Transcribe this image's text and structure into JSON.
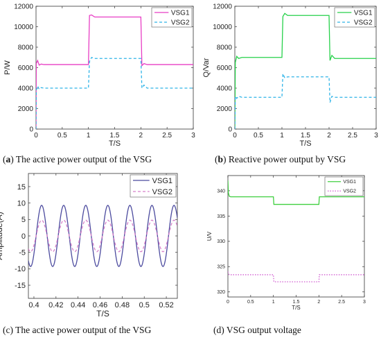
{
  "captions": [
    {
      "letter": "a",
      "text": "The active power output of the VSG"
    },
    {
      "letter": "b",
      "text": "Reactive power output by VSG"
    },
    {
      "plain": "(c) The active power output of the VSG"
    },
    {
      "plain": "(d) VSG output voltage"
    }
  ],
  "chart_data": [
    {
      "type": "line",
      "xlabel": "T/S",
      "ylabel": "P/W",
      "xlim": [
        0,
        3
      ],
      "ylim": [
        0,
        12000
      ],
      "xticks": [
        0,
        0.5,
        1,
        1.5,
        2,
        2.5,
        3
      ],
      "yticks": [
        0,
        2000,
        4000,
        6000,
        8000,
        10000,
        12000
      ],
      "legend_position": "top-right",
      "series": [
        {
          "name": "VSG1",
          "color": "#e83dc4",
          "dash": "solid",
          "x": [
            0,
            0.005,
            0.03,
            0.06,
            0.1,
            0.15,
            1.0,
            1.02,
            1.06,
            1.12,
            2.0,
            2.02,
            2.06,
            2.12,
            3.0
          ],
          "y": [
            0,
            6400,
            6700,
            6250,
            6350,
            6300,
            6300,
            11100,
            11150,
            10950,
            10950,
            6200,
            6400,
            6300,
            6300
          ]
        },
        {
          "name": "VSG2",
          "color": "#2fb4e8",
          "dash": "dashed",
          "x": [
            0,
            0.005,
            0.03,
            0.06,
            0.1,
            0.15,
            1.0,
            1.02,
            1.06,
            1.12,
            2.0,
            2.02,
            2.06,
            2.12,
            3.0
          ],
          "y": [
            0,
            3800,
            4200,
            3900,
            4050,
            4000,
            4000,
            6600,
            7000,
            6900,
            6900,
            4000,
            4300,
            4000,
            4000
          ]
        }
      ]
    },
    {
      "type": "line",
      "xlabel": "T/S",
      "ylabel": "Q/Var",
      "xlim": [
        0,
        3
      ],
      "ylim": [
        0,
        12000
      ],
      "xticks": [
        0,
        0.5,
        1,
        1.5,
        2,
        2.5,
        3
      ],
      "yticks": [
        0,
        2000,
        4000,
        6000,
        8000,
        10000,
        12000
      ],
      "legend_position": "top-right",
      "series": [
        {
          "name": "VSG1",
          "color": "#26d14a",
          "dash": "solid",
          "x": [
            0,
            0.01,
            0.04,
            0.08,
            0.15,
            1.0,
            1.02,
            1.06,
            1.12,
            2.0,
            2.02,
            2.06,
            2.12,
            3.0
          ],
          "y": [
            0,
            6500,
            7100,
            6900,
            7000,
            7000,
            11000,
            11300,
            11100,
            11100,
            6700,
            7200,
            6900,
            6900
          ]
        },
        {
          "name": "VSG2",
          "color": "#2fb4e8",
          "dash": "dashed",
          "x": [
            0,
            0.01,
            0.04,
            0.08,
            0.15,
            1.0,
            1.02,
            1.06,
            1.12,
            2.0,
            2.02,
            2.06,
            2.12,
            3.0
          ],
          "y": [
            0,
            3200,
            3000,
            3200,
            3100,
            3100,
            5400,
            5000,
            5100,
            5100,
            2600,
            3200,
            3100,
            3100
          ]
        }
      ]
    },
    {
      "type": "line",
      "xlabel": "T/S",
      "ylabel": "Amplitude(A)",
      "xlim": [
        0.395,
        0.53
      ],
      "ylim": [
        -19,
        19
      ],
      "xticks": [
        0.4,
        0.42,
        0.44,
        0.46,
        0.48,
        0.5,
        0.52
      ],
      "xtick_labels": [
        "0.4",
        "0.42",
        "0.44",
        "0.46",
        "0.48",
        "0.5",
        "0.52"
      ],
      "yticks": [
        -15,
        -10,
        -5,
        0,
        5,
        10,
        15
      ],
      "legend_position": "top-right",
      "series": [
        {
          "name": "VSG1",
          "color": "#4b4a9e",
          "dash": "solid",
          "amplitude": 9.3,
          "frequency_hz": 50,
          "phase_peak_at": 0.407
        },
        {
          "name": "VSG2",
          "color": "#d67fc9",
          "dash": "dashed",
          "amplitude": 4.8,
          "frequency_hz": 50,
          "phase_peak_at": 0.407
        }
      ]
    },
    {
      "type": "line",
      "xlabel": "T/S",
      "ylabel": "U/V",
      "xlim": [
        0,
        3
      ],
      "ylim": [
        319,
        343
      ],
      "xticks": [
        0,
        0.5,
        1,
        1.5,
        2,
        2.5,
        3
      ],
      "yticks": [
        320,
        325,
        330,
        335,
        340
      ],
      "legend_position": "top-right",
      "series": [
        {
          "name": "VSG1",
          "color": "#3fcf3f",
          "dash": "solid",
          "x": [
            0,
            0.01,
            0.03,
            0.06,
            1.0,
            1.01,
            2.0,
            2.01,
            3.0
          ],
          "y": [
            342,
            339.6,
            338.9,
            338.8,
            338.8,
            337.3,
            337.3,
            338.8,
            338.8
          ]
        },
        {
          "name": "VSG2",
          "color": "#d05ad0",
          "dash": "dotted",
          "x": [
            0,
            0.01,
            0.03,
            0.06,
            1.0,
            1.01,
            2.0,
            2.01,
            3.0
          ],
          "y": [
            324,
            323.6,
            323.4,
            323.4,
            323.4,
            322.0,
            322.0,
            323.4,
            323.4
          ]
        }
      ]
    }
  ]
}
